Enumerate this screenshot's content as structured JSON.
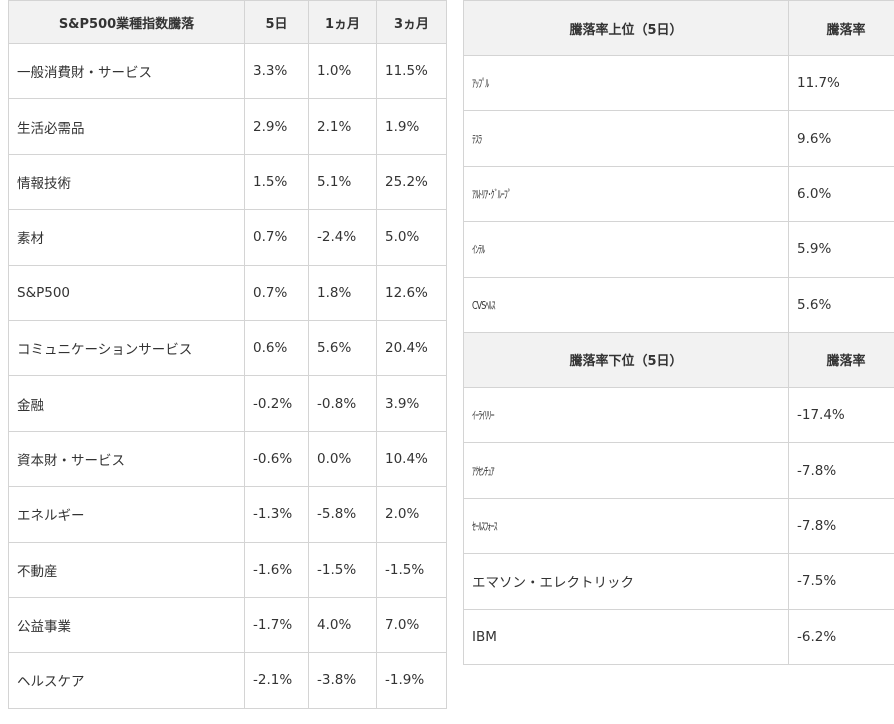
{
  "sector_table": {
    "headers": [
      "S&P500業種指数騰落",
      "5日",
      "1ヵ月",
      "3ヵ月"
    ],
    "rows": [
      [
        "一般消費財・サービス",
        "3.3%",
        "1.0%",
        "11.5%"
      ],
      [
        "生活必需品",
        "2.9%",
        "2.1%",
        "1.9%"
      ],
      [
        "情報技術",
        "1.5%",
        "5.1%",
        "25.2%"
      ],
      [
        "素材",
        "0.7%",
        "-2.4%",
        "5.0%"
      ],
      [
        "S&P500",
        "0.7%",
        "1.8%",
        "12.6%"
      ],
      [
        "コミュニケーションサービス",
        "0.6%",
        "5.6%",
        "20.4%"
      ],
      [
        "金融",
        "-0.2%",
        "-0.8%",
        "3.9%"
      ],
      [
        "資本財・サービス",
        "-0.6%",
        "0.0%",
        "10.4%"
      ],
      [
        "エネルギー",
        "-1.3%",
        "-5.8%",
        "2.0%"
      ],
      [
        "不動産",
        "-1.6%",
        "-1.5%",
        "-1.5%"
      ],
      [
        "公益事業",
        "-1.7%",
        "4.0%",
        "7.0%"
      ],
      [
        "ヘルスケア",
        "-2.1%",
        "-3.8%",
        "-1.9%"
      ]
    ]
  },
  "gainers_table": {
    "headers": [
      "騰落率上位（5日）",
      "騰落率"
    ],
    "rows": [
      [
        "ｱｯﾌﾟﾙ",
        "11.7%"
      ],
      [
        "ﾃｽﾗ",
        "9.6%"
      ],
      [
        "ｱﾙﾄﾘｱ･ｸﾞﾙｰﾌﾟ",
        "6.0%"
      ],
      [
        "ｲﾝﾃﾙ",
        "5.9%"
      ],
      [
        "CVSﾍﾙｽ",
        "5.6%"
      ]
    ]
  },
  "losers_table": {
    "headers": [
      "騰落率下位（5日）",
      "騰落率"
    ],
    "rows": [
      [
        "ｲｰﾗｲﾘﾘｰ",
        "-17.4%"
      ],
      [
        "ｱｸｾﾝﾁｭｱ",
        "-7.8%"
      ],
      [
        "ｾｰﾙｽﾌｫｰｽ",
        "-7.8%"
      ],
      [
        "エマソン・エレクトリック",
        "-7.5%"
      ],
      [
        "IBM",
        "-6.2%"
      ]
    ]
  }
}
